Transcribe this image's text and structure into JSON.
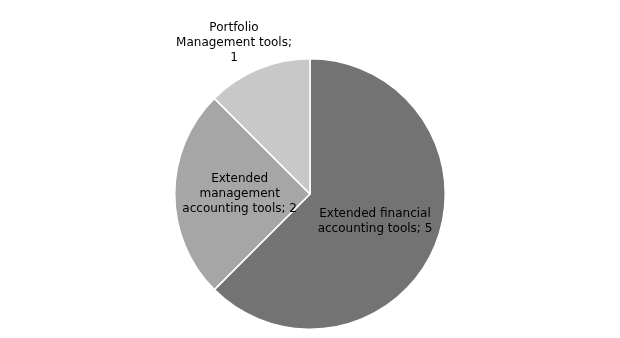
{
  "chart_data": {
    "type": "pie",
    "categories": [
      "Extended financial\naccounting tools; 5",
      "Extended\nmanagement\naccounting tools; 2",
      "Portfolio\nManagement tools;\n1"
    ],
    "values": [
      5,
      2,
      1
    ],
    "colors": [
      "#737373",
      "#a6a6a6",
      "#c8c8c8"
    ]
  }
}
